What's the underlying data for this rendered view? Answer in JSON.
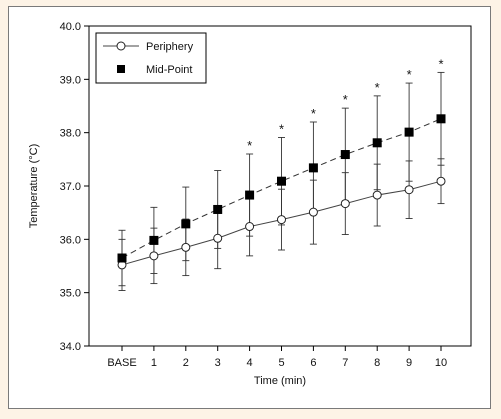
{
  "chart_data": {
    "type": "line",
    "xlabel": "Time (min)",
    "ylabel": "Temperature (°C)",
    "categories": [
      "BASE",
      "1",
      "2",
      "3",
      "4",
      "5",
      "6",
      "7",
      "8",
      "9",
      "10"
    ],
    "ylim": [
      34.0,
      40.0
    ],
    "yticks": [
      "34.0",
      "35.0",
      "36.0",
      "37.0",
      "38.0",
      "39.0",
      "40.0"
    ],
    "legend_position": "top-left",
    "series": [
      {
        "name": "Periphery",
        "marker": "open-circle",
        "line": "solid",
        "values": [
          35.52,
          35.69,
          35.85,
          36.02,
          36.24,
          36.37,
          36.51,
          36.67,
          36.83,
          36.93,
          37.09
        ],
        "sd": [
          0.48,
          0.52,
          0.53,
          0.57,
          0.55,
          0.57,
          0.6,
          0.58,
          0.58,
          0.54,
          0.42
        ]
      },
      {
        "name": "Mid-Point",
        "marker": "filled-square",
        "line": "dashed",
        "values": [
          35.65,
          35.98,
          36.29,
          36.56,
          36.83,
          37.09,
          37.34,
          37.59,
          37.81,
          38.01,
          38.26
        ],
        "sd": [
          0.52,
          0.62,
          0.69,
          0.73,
          0.77,
          0.82,
          0.86,
          0.87,
          0.88,
          0.92,
          0.87
        ]
      }
    ],
    "significance_marker": "*",
    "significant_categories": [
      "4",
      "5",
      "6",
      "7",
      "8",
      "9",
      "10"
    ]
  }
}
